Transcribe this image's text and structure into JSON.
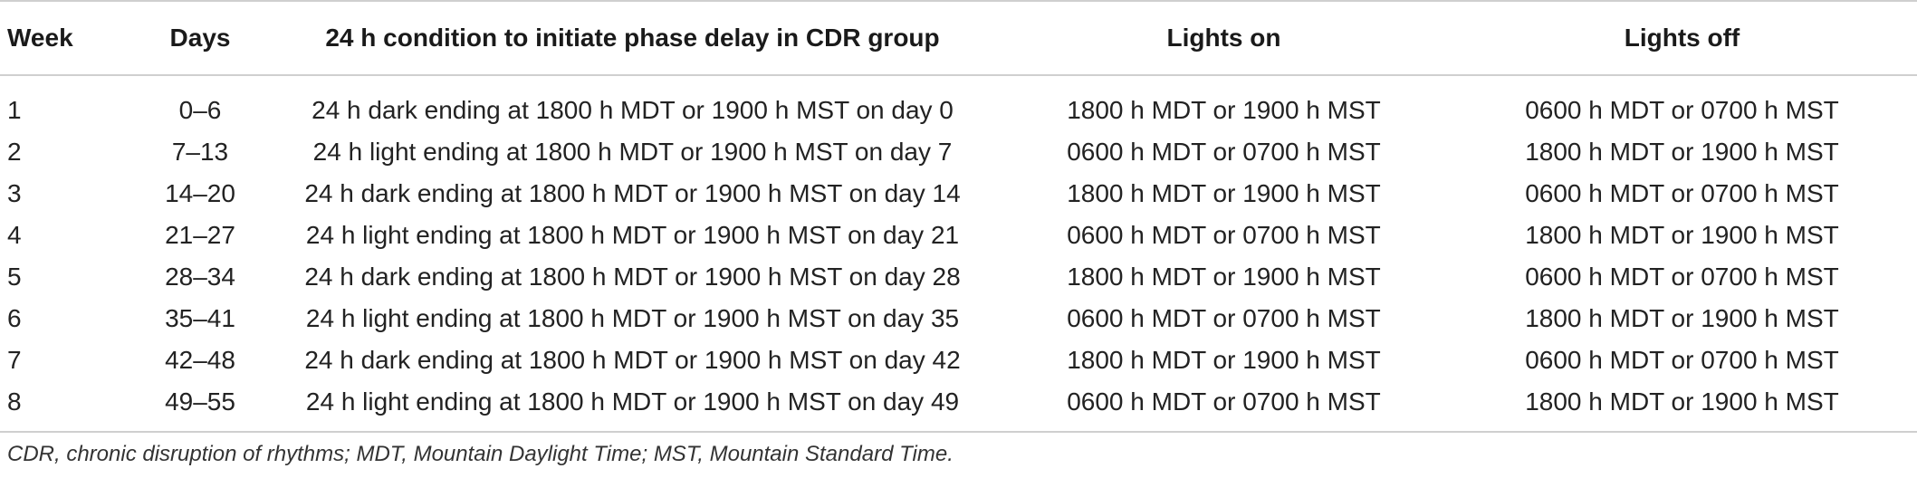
{
  "table": {
    "headers": {
      "week": "Week",
      "days": "Days",
      "condition": "24 h condition to initiate phase delay in CDR group",
      "lights_on": "Lights on",
      "lights_off": "Lights off"
    },
    "rows": [
      {
        "week": "1",
        "days": "0–6",
        "condition": "24 h dark ending at 1800 h MDT or 1900 h MST on day 0",
        "lights_on": "1800 h MDT or 1900 h MST",
        "lights_off": "0600 h MDT or 0700 h MST"
      },
      {
        "week": "2",
        "days": "7–13",
        "condition": "24 h light ending at 1800 h MDT or 1900 h MST on day 7",
        "lights_on": "0600 h MDT or 0700 h MST",
        "lights_off": "1800 h MDT or 1900 h MST"
      },
      {
        "week": "3",
        "days": "14–20",
        "condition": "24 h dark ending at 1800 h MDT or 1900 h MST on day 14",
        "lights_on": "1800 h MDT or 1900 h MST",
        "lights_off": "0600 h MDT or 0700 h MST"
      },
      {
        "week": "4",
        "days": "21–27",
        "condition": "24 h light ending at 1800 h MDT or 1900 h MST on day 21",
        "lights_on": "0600 h MDT or 0700 h MST",
        "lights_off": "1800 h MDT or 1900 h MST"
      },
      {
        "week": "5",
        "days": "28–34",
        "condition": "24 h dark ending at 1800 h MDT or 1900 h MST on day 28",
        "lights_on": "1800 h MDT or 1900 h MST",
        "lights_off": "0600 h MDT or 0700 h MST"
      },
      {
        "week": "6",
        "days": "35–41",
        "condition": "24 h light ending at 1800 h MDT or 1900 h MST on day 35",
        "lights_on": "0600 h MDT or 0700 h MST",
        "lights_off": "1800 h MDT or 1900 h MST"
      },
      {
        "week": "7",
        "days": "42–48",
        "condition": "24 h dark ending at 1800 h MDT or 1900 h MST on day 42",
        "lights_on": "1800 h MDT or 1900 h MST",
        "lights_off": "0600 h MDT or 0700 h MST"
      },
      {
        "week": "8",
        "days": "49–55",
        "condition": "24 h light ending at 1800 h MDT or 1900 h MST on day 49",
        "lights_on": "0600 h MDT or 0700 h MST",
        "lights_off": "1800 h MDT or 1900 h MST"
      }
    ]
  },
  "footnote": "CDR, chronic disruption of rhythms; MDT, Mountain Daylight Time; MST, Mountain Standard Time.",
  "colors": {
    "text": "#222222",
    "rule": "#cfcfcf",
    "background": "#ffffff"
  }
}
